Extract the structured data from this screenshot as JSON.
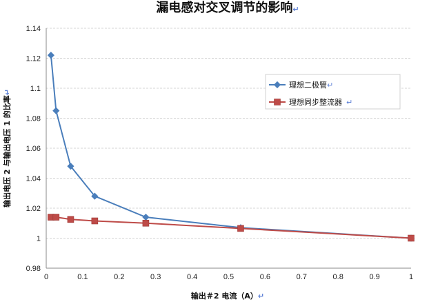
{
  "chart_data": {
    "type": "line",
    "title": "漏电感对交叉调节的影响",
    "xlabel": "输出＃2 电流（A）",
    "ylabel": "输出电压 2 与输出电压 1 的比率",
    "xlim": [
      0,
      1
    ],
    "ylim": [
      0.98,
      1.14
    ],
    "xticks": [
      "0",
      "0.1",
      "0.2",
      "0.3",
      "0.4",
      "0.5",
      "0.6",
      "0.7",
      "0.8",
      "0.9",
      "1"
    ],
    "yticks": [
      "0.98",
      "1",
      "1.02",
      "1.04",
      "1.06",
      "1.08",
      "1.1",
      "1.12",
      "1.14"
    ],
    "grid": "horizontal",
    "legend_position": "right",
    "series": [
      {
        "name": "理想二极管",
        "color": "#4a7ebb",
        "marker": "diamond",
        "x": [
          0.013,
          0.027,
          0.067,
          0.133,
          0.273,
          0.533,
          1.0
        ],
        "y": [
          1.122,
          1.085,
          1.048,
          1.028,
          1.014,
          1.007,
          1.0
        ]
      },
      {
        "name": "理想同步整流器",
        "color": "#be4b48",
        "marker": "square",
        "x": [
          0.013,
          0.027,
          0.067,
          0.133,
          0.273,
          0.533,
          1.0
        ],
        "y": [
          1.014,
          1.014,
          1.0125,
          1.0115,
          1.01,
          1.0065,
          1.0
        ]
      }
    ]
  },
  "return_mark": "↵"
}
